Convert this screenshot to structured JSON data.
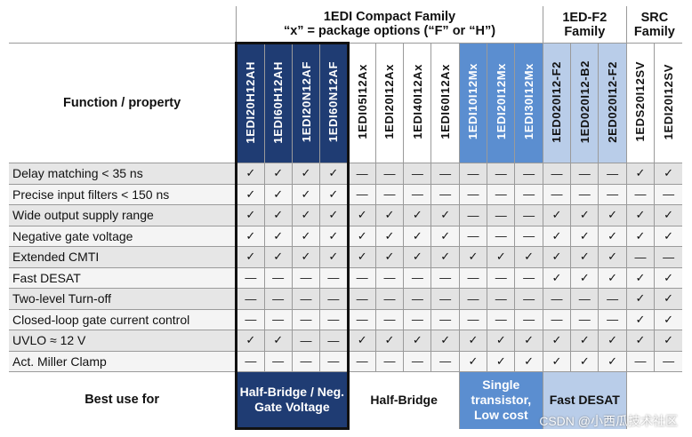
{
  "header": {
    "function_label": "Function / property",
    "families": [
      {
        "line1": "1EDI Compact Family",
        "line2": "“x” = package options (“F” or “H”)"
      },
      {
        "line1": "1ED-F2",
        "line2": "Family"
      },
      {
        "line1": "SRC",
        "line2": "Family"
      }
    ],
    "parts": [
      "1EDI20H12AH",
      "1EDI60H12AH",
      "1EDI20N12AF",
      "1EDI60N12AF",
      "1EDI05I12Ax",
      "1EDI20I12Ax",
      "1EDI40I12Ax",
      "1EDI60I12Ax",
      "1EDI10I12Mx",
      "1EDI20I12Mx",
      "1EDI30I12Mx",
      "1ED020I12-F2",
      "1ED020I12-B2",
      "2ED020I12-F2",
      "1EDS20I12SV",
      "1EDI20I12SV"
    ]
  },
  "rows": [
    {
      "label": "Delay matching < 35 ns",
      "cells": [
        "✓",
        "✓",
        "✓",
        "✓",
        "—",
        "—",
        "—",
        "—",
        "—",
        "—",
        "—",
        "—",
        "—",
        "—",
        "✓",
        "✓"
      ]
    },
    {
      "label": "Precise input filters < 150 ns",
      "cells": [
        "✓",
        "✓",
        "✓",
        "✓",
        "—",
        "—",
        "—",
        "—",
        "—",
        "—",
        "—",
        "—",
        "—",
        "—",
        "—",
        "—"
      ]
    },
    {
      "label": "Wide output supply range",
      "cells": [
        "✓",
        "✓",
        "✓",
        "✓",
        "✓",
        "✓",
        "✓",
        "✓",
        "—",
        "—",
        "—",
        "✓",
        "✓",
        "✓",
        "✓",
        "✓"
      ]
    },
    {
      "label": "Negative gate voltage",
      "cells": [
        "✓",
        "✓",
        "✓",
        "✓",
        "✓",
        "✓",
        "✓",
        "✓",
        "—",
        "—",
        "—",
        "✓",
        "✓",
        "✓",
        "✓",
        "✓"
      ]
    },
    {
      "label": "Extended CMTI",
      "cells": [
        "✓",
        "✓",
        "✓",
        "✓",
        "✓",
        "✓",
        "✓",
        "✓",
        "✓",
        "✓",
        "✓",
        "✓",
        "✓",
        "✓",
        "—",
        "—"
      ]
    },
    {
      "label": "Fast DESAT",
      "cells": [
        "—",
        "—",
        "—",
        "—",
        "—",
        "—",
        "—",
        "—",
        "—",
        "—",
        "—",
        "✓",
        "✓",
        "✓",
        "✓",
        "✓"
      ]
    },
    {
      "label": "Two-level Turn-off",
      "cells": [
        "—",
        "—",
        "—",
        "—",
        "—",
        "—",
        "—",
        "—",
        "—",
        "—",
        "—",
        "—",
        "—",
        "—",
        "✓",
        "✓"
      ]
    },
    {
      "label": "Closed-loop gate current control",
      "cells": [
        "—",
        "—",
        "—",
        "—",
        "—",
        "—",
        "—",
        "—",
        "—",
        "—",
        "—",
        "—",
        "—",
        "—",
        "✓",
        "✓"
      ]
    },
    {
      "label": "UVLO ≈ 12 V",
      "cells": [
        "✓",
        "✓",
        "—",
        "—",
        "✓",
        "✓",
        "✓",
        "✓",
        "✓",
        "✓",
        "✓",
        "✓",
        "✓",
        "✓",
        "✓",
        "✓"
      ]
    },
    {
      "label": "Act. Miller Clamp",
      "cells": [
        "—",
        "—",
        "—",
        "—",
        "—",
        "—",
        "—",
        "—",
        "✓",
        "✓",
        "✓",
        "✓",
        "✓",
        "✓",
        "—",
        "—"
      ]
    }
  ],
  "best_use": {
    "label": "Best use for",
    "groups": [
      "Half-Bridge / Neg. Gate Voltage",
      "Half-Bridge",
      "Single transistor, Low cost",
      "Fast DESAT",
      ""
    ]
  },
  "watermark": "CSDN @小西瓜技术社区",
  "colors": {
    "dark": "#1f3c73",
    "mid": "#5b8ed0",
    "light": "#b9cde9",
    "row_gray": "#e6e6e6"
  }
}
